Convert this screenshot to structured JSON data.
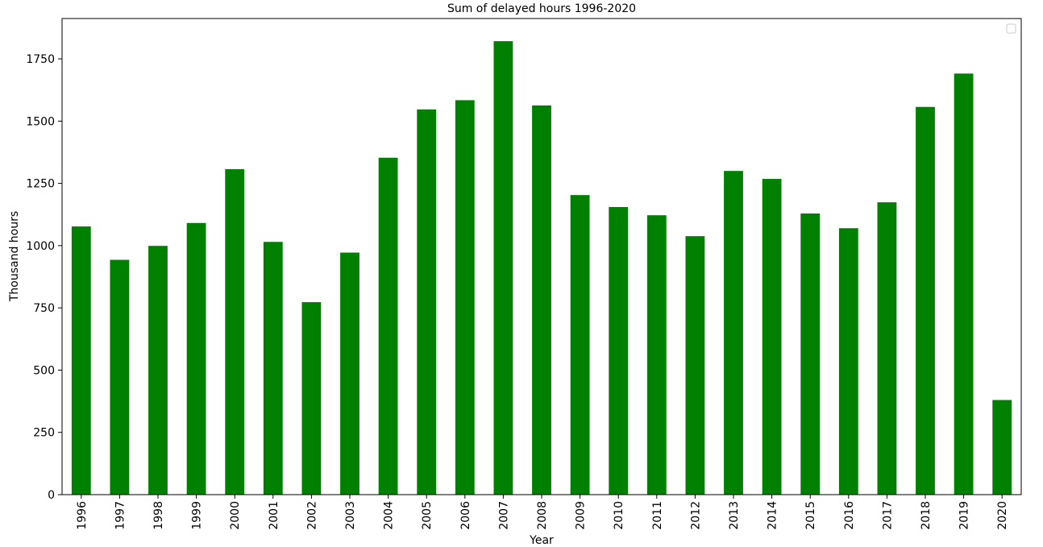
{
  "chart_data": {
    "type": "bar",
    "title": "Sum of delayed hours 1996-2020",
    "xlabel": "Year",
    "ylabel": "Thousand hours",
    "categories": [
      "1996",
      "1997",
      "1998",
      "1999",
      "2000",
      "2001",
      "2002",
      "2003",
      "2004",
      "2005",
      "2006",
      "2007",
      "2008",
      "2009",
      "2010",
      "2011",
      "2012",
      "2013",
      "2014",
      "2015",
      "2016",
      "2017",
      "2018",
      "2019",
      "2020"
    ],
    "values": [
      1077,
      943,
      999,
      1091,
      1307,
      1015,
      773,
      972,
      1353,
      1547,
      1584,
      1821,
      1563,
      1203,
      1155,
      1122,
      1038,
      1300,
      1268,
      1129,
      1070,
      1174,
      1557,
      1691,
      380
    ],
    "yticks": [
      0,
      250,
      500,
      750,
      1000,
      1250,
      1500,
      1750
    ],
    "ylim": [
      0,
      1912
    ],
    "bar_color": "#008000",
    "grid": false,
    "legend": {
      "placement": "top-right",
      "entries": []
    }
  }
}
